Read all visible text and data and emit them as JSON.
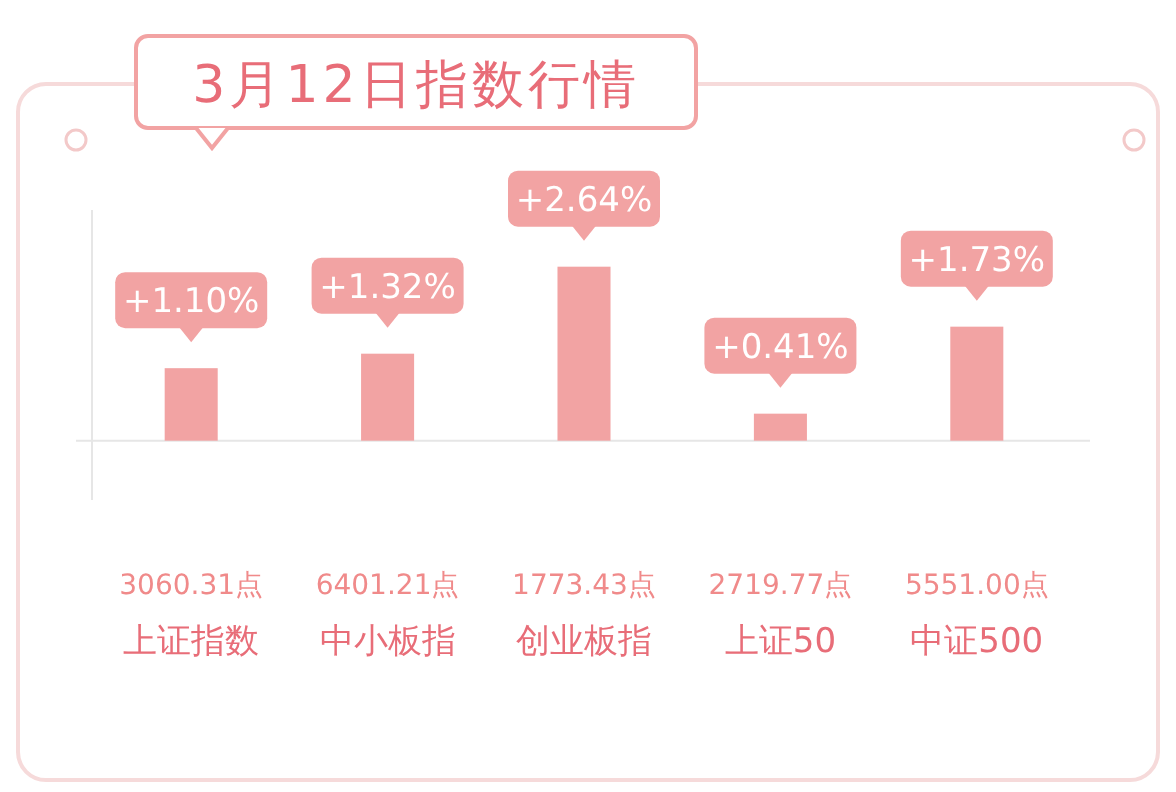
{
  "chart_data": {
    "type": "bar",
    "title": "3月12日指数行情",
    "categories": [
      "上证指数",
      "中小板指",
      "创业板指",
      "上证50",
      "中证500"
    ],
    "values": [
      1.1,
      1.32,
      2.64,
      0.41,
      1.73
    ],
    "value_labels": [
      "+1.10%",
      "+1.32%",
      "+2.64%",
      "+0.41%",
      "+1.73%"
    ],
    "color": "#f2a3a3",
    "ylim": [
      -0.9,
      3.5
    ],
    "tick_labels": "x",
    "annotations": [
      "3060.31点",
      "6401.21点",
      "1773.43点",
      "2719.77点",
      "5551.00点"
    ]
  }
}
